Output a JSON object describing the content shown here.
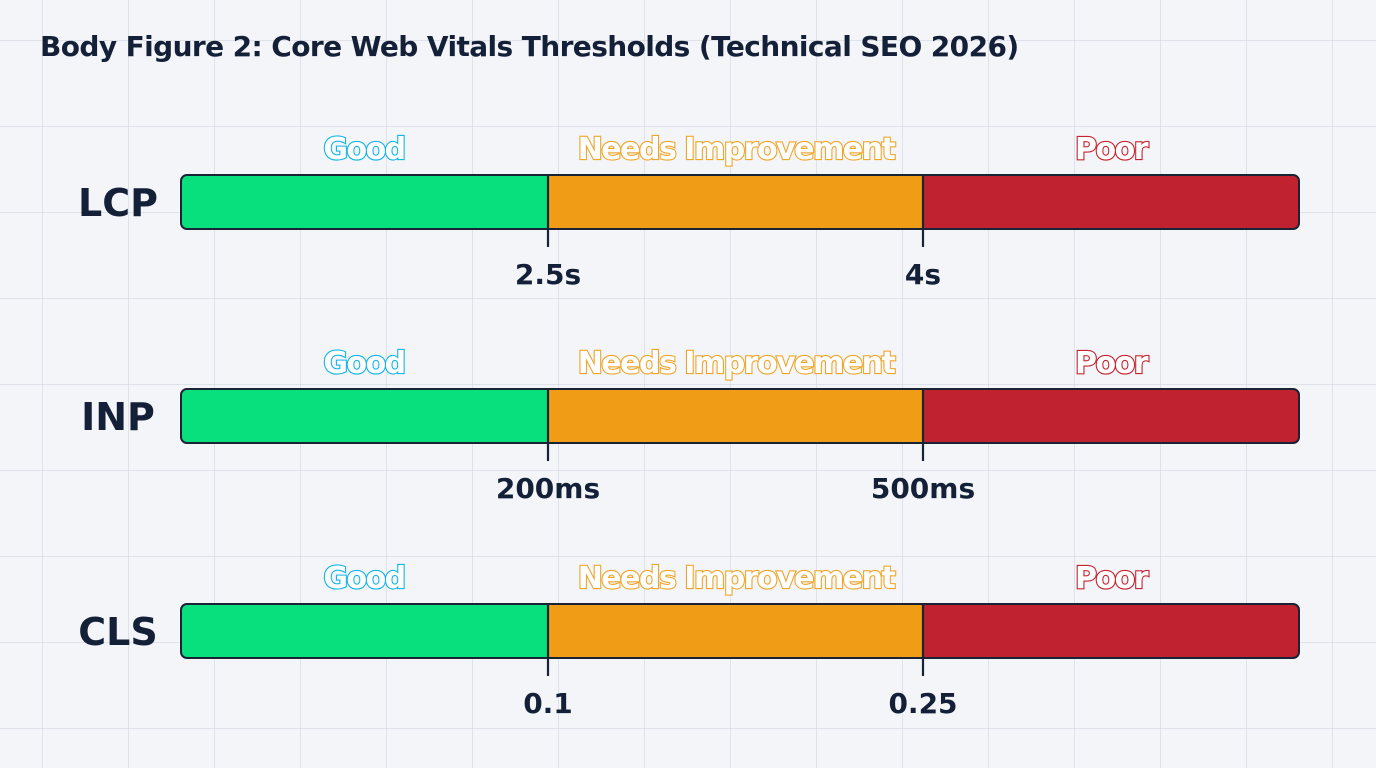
{
  "title": "Body Figure 2: Core Web Vitals Thresholds (Technical SEO 2026)",
  "colors": {
    "good": "#08e07e",
    "needs_improvement": "#f09c16",
    "poor": "#c0232f",
    "good_label": "#14b5e8",
    "needs_label": "#eea62a",
    "poor_label": "#c4232f",
    "text": "#142038",
    "outline": "#1a2236"
  },
  "chart_data": {
    "type": "bar",
    "title": "Body Figure 2: Core Web Vitals Thresholds (Technical SEO 2026)",
    "band_labels": [
      "Good",
      "Needs Improvement",
      "Poor"
    ],
    "rows": [
      {
        "metric": "LCP",
        "thresholds": [
          "2.5s",
          "4s"
        ]
      },
      {
        "metric": "INP",
        "thresholds": [
          "200ms",
          "500ms"
        ]
      },
      {
        "metric": "CLS",
        "thresholds": [
          "0.1",
          "0.25"
        ]
      }
    ]
  }
}
